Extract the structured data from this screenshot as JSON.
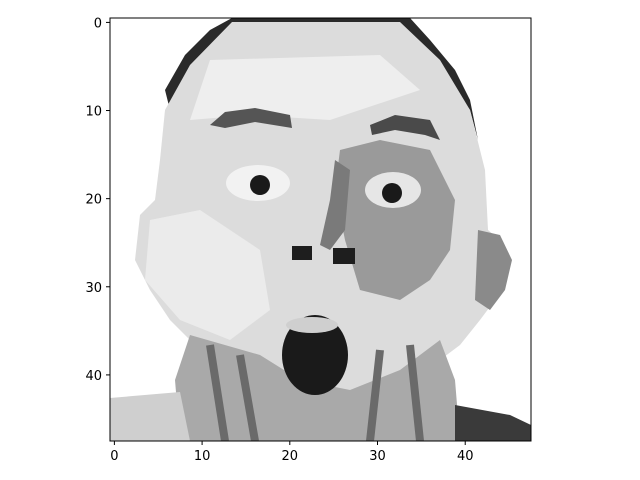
{
  "chart_data": {
    "type": "heatmap",
    "colormap": "gray",
    "title": "",
    "xlabel": "",
    "ylabel": "",
    "grid": false,
    "image_size": [
      48,
      48
    ],
    "xlim": [
      -0.5,
      47.5
    ],
    "ylim": [
      47.5,
      -0.5
    ],
    "x_ticks": [
      0,
      10,
      20,
      30,
      40
    ],
    "y_ticks": [
      0,
      10,
      20,
      30,
      40
    ],
    "x_tick_labels": [
      "0",
      "10",
      "20",
      "30",
      "40"
    ],
    "y_tick_labels": [
      "0",
      "10",
      "20",
      "30",
      "40"
    ],
    "subject": "grayscale face with raised eyebrows, wide eyes and open mouth"
  }
}
